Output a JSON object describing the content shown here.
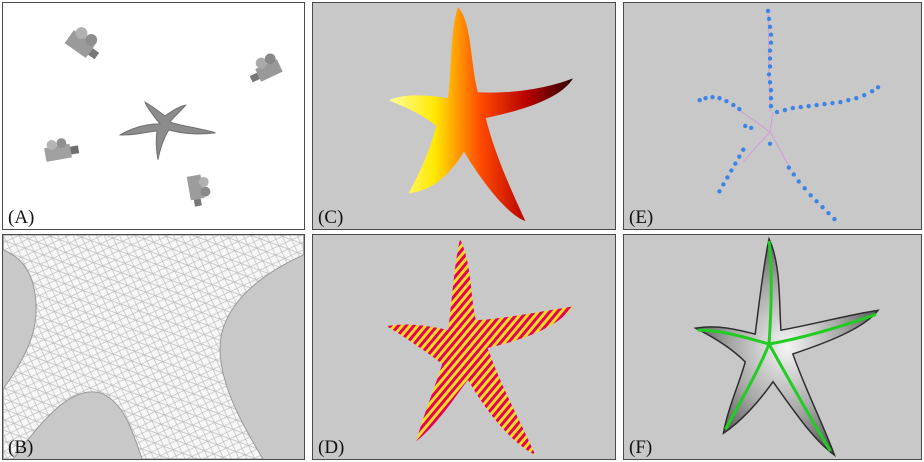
{
  "panels": [
    {
      "id": "A",
      "label": "(A)",
      "bg": "#ffffff"
    },
    {
      "id": "B",
      "label": "(B)",
      "bg": "#c8c8c8"
    },
    {
      "id": "C",
      "label": "(C)",
      "bg": "#c8c8c8"
    },
    {
      "id": "D",
      "label": "(D)",
      "bg": "#c8c8c8"
    },
    {
      "id": "E",
      "label": "(E)",
      "bg": "#c8c8c8"
    },
    {
      "id": "F",
      "label": "(F)",
      "bg": "#c8c8c8"
    }
  ],
  "colors": {
    "heat_hot": "#ffff33",
    "heat_mid": "#ff6a00",
    "heat_cold": "#2a0505",
    "stripe_a": "#e6005a",
    "stripe_b": "#f5e020",
    "skeleton_points": "#3b84e6",
    "skeleton_links": "#d29ad8",
    "skeleton_green": "#22cc22"
  }
}
